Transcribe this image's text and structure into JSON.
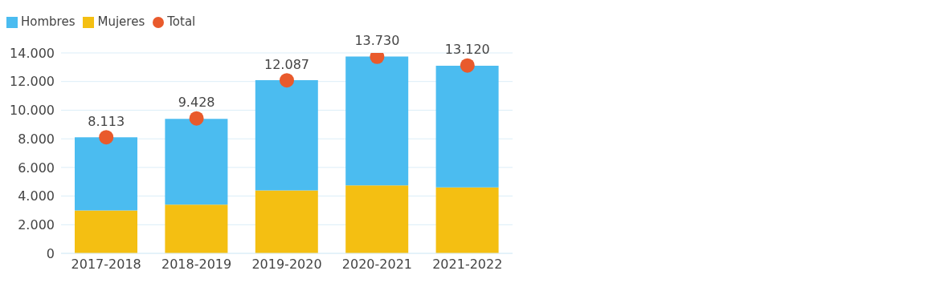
{
  "chart_data": {
    "type": "bar",
    "stacked": true,
    "categories": [
      "2017-2018",
      "2018-2019",
      "2019-2020",
      "2020-2021",
      "2021-2022"
    ],
    "series": [
      {
        "name": "Mujeres",
        "color": "#f4bf12",
        "values": [
          3000,
          3400,
          4400,
          4750,
          4600
        ]
      },
      {
        "name": "Hombres",
        "color": "#4bbcf0",
        "values": [
          5100,
          6000,
          7700,
          9000,
          8500
        ]
      },
      {
        "name": "Total",
        "type": "scatter",
        "color": "#e95a2c",
        "marker": "circle",
        "values": [
          8113,
          9428,
          12087,
          13730,
          13120
        ],
        "value_labels": [
          "8.113",
          "9.428",
          "12.087",
          "13.730",
          "13.120"
        ]
      }
    ],
    "ylim": [
      0,
      14000
    ],
    "yticks": [
      {
        "value": 0,
        "label": "0"
      },
      {
        "value": 2000,
        "label": "2.000"
      },
      {
        "value": 4000,
        "label": "4.000"
      },
      {
        "value": 6000,
        "label": "6.000"
      },
      {
        "value": 8000,
        "label": "8.000"
      },
      {
        "value": 10000,
        "label": "10.000"
      },
      {
        "value": 12000,
        "label": "12.000"
      },
      {
        "value": 14000,
        "label": "14.000"
      }
    ],
    "grid": "y",
    "legend": "top left"
  }
}
